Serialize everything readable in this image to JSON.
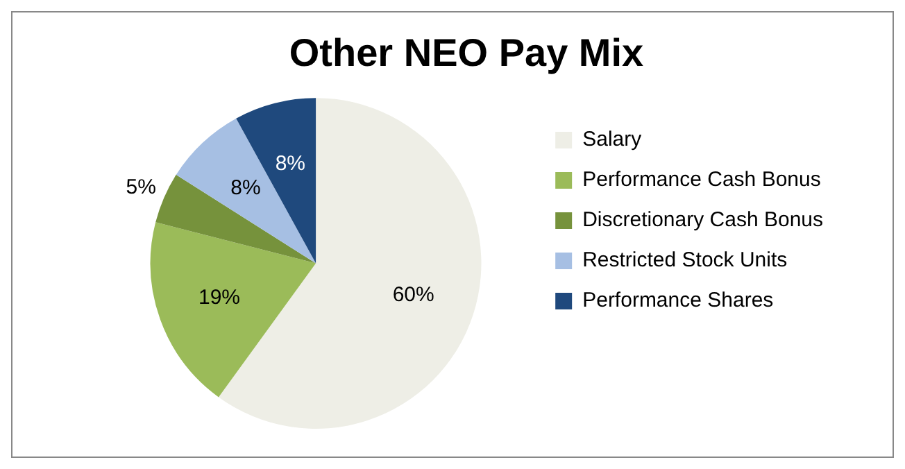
{
  "chart_data": {
    "type": "pie",
    "title": "Other NEO Pay Mix",
    "categories": [
      "Salary",
      "Performance Cash Bonus",
      "Discretionary Cash Bonus",
      "Restricted Stock Units",
      "Performance Shares"
    ],
    "values": [
      60,
      19,
      5,
      8,
      8
    ],
    "colors": [
      "#eeeee6",
      "#9bbb59",
      "#76923c",
      "#a6bfe3",
      "#1f497d"
    ],
    "value_labels": [
      "60%",
      "19%",
      "5%",
      "8%",
      "8%"
    ],
    "legend": "right"
  }
}
